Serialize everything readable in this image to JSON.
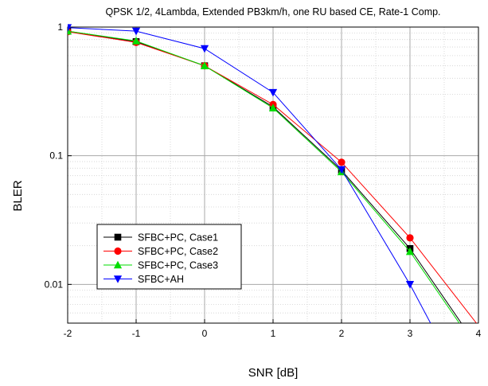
{
  "chart_data": {
    "type": "line",
    "title": "QPSK 1/2, 4Lambda, Extended PB3km/h, one RU based CE, Rate-1 Comp.",
    "xlabel": "SNR [dB]",
    "ylabel": "BLER",
    "xlim": [
      -2,
      4
    ],
    "ylim": [
      0.005,
      1
    ],
    "yscale": "log",
    "grid": true,
    "legend_position": "lower-left",
    "x_ticks": [
      "-2",
      "-1",
      "0",
      "1",
      "2",
      "3",
      "4"
    ],
    "y_ticks": [
      "1",
      "0.1",
      "0.01"
    ],
    "series": [
      {
        "name": "SFBC+PC, Case1",
        "color": "#000000",
        "marker": "square",
        "x": [
          -2,
          -1,
          0,
          1,
          2,
          3,
          3.75
        ],
        "y": [
          0.93,
          0.77,
          0.5,
          0.24,
          0.077,
          0.019,
          0.005
        ]
      },
      {
        "name": "SFBC+PC, Case2",
        "color": "#ff0000",
        "marker": "circle",
        "x": [
          -2,
          -1,
          0,
          1,
          2,
          3,
          3.97
        ],
        "y": [
          0.92,
          0.76,
          0.5,
          0.25,
          0.089,
          0.023,
          0.005
        ]
      },
      {
        "name": "SFBC+PC, Case3",
        "color": "#00dd00",
        "marker": "triangle-up",
        "x": [
          -2,
          -1,
          0,
          1,
          2,
          3,
          3.72
        ],
        "y": [
          0.93,
          0.78,
          0.5,
          0.235,
          0.075,
          0.018,
          0.005
        ]
      },
      {
        "name": "SFBC+AH",
        "color": "#0000ff",
        "marker": "triangle-down",
        "x": [
          -2,
          -1,
          0,
          1,
          2,
          3,
          3.3
        ],
        "y": [
          0.99,
          0.93,
          0.68,
          0.31,
          0.078,
          0.01,
          0.005
        ]
      }
    ]
  }
}
